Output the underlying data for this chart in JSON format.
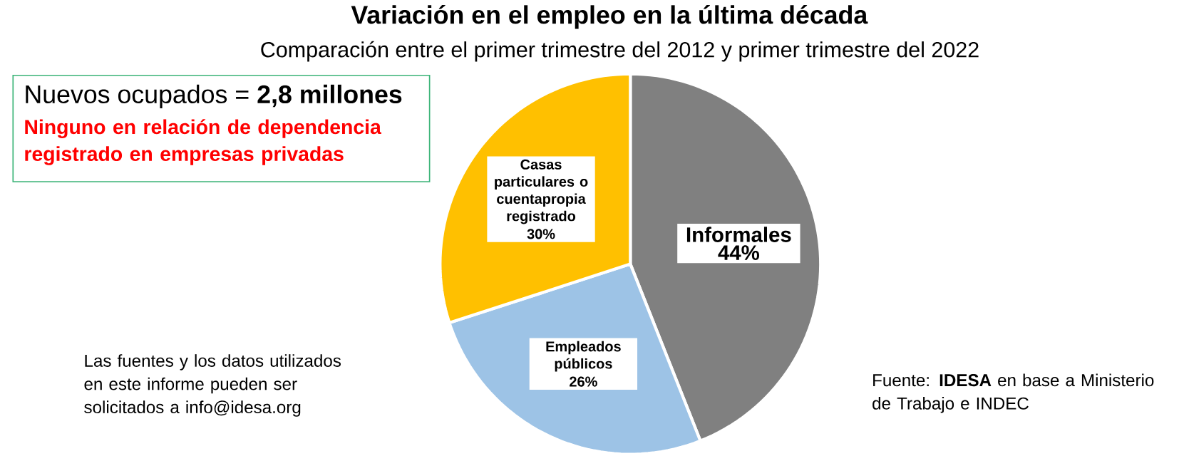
{
  "chart_data": {
    "type": "pie",
    "title": "Variación en el empleo en la última década",
    "subtitle": "Comparación entre el primer trimestre del 2012 y primer trimestre del 2022",
    "categories": [
      "Informales",
      "Empleados públicos",
      "Casas particulares o cuentapropia registrado"
    ],
    "values": [
      44,
      26,
      30
    ],
    "value_labels": [
      "44%",
      "26%",
      "30%"
    ],
    "colors": [
      "#808080",
      "#9dc3e6",
      "#ffc000"
    ],
    "annotations": [
      "Nuevos ocupados = **2,8 millones**",
      "Ninguno en relación de dependencia registrado en empresas privadas",
      "Las fuentes y los datos utilizados en este informe pueden ser solicitados a info@idesa.org",
      "Fuente: **IDESA** en base a Ministerio de Trabajo e INDEC"
    ]
  }
}
